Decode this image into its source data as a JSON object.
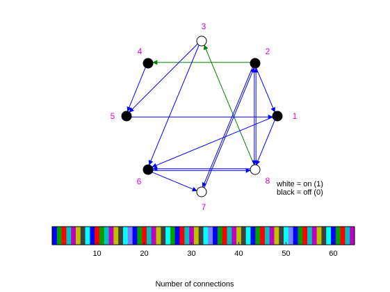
{
  "diagram": {
    "label_color": "#e000e0",
    "nodes": [
      {
        "id": "1",
        "label": "1",
        "state": "off"
      },
      {
        "id": "2",
        "label": "2",
        "state": "off"
      },
      {
        "id": "3",
        "label": "3",
        "state": "on"
      },
      {
        "id": "4",
        "label": "4",
        "state": "off"
      },
      {
        "id": "5",
        "label": "5",
        "state": "off"
      },
      {
        "id": "6",
        "label": "6",
        "state": "off"
      },
      {
        "id": "7",
        "label": "7",
        "state": "on"
      },
      {
        "id": "8",
        "label": "8",
        "state": "on"
      }
    ],
    "edges": [
      {
        "from": "2",
        "to": "4",
        "color": "#008000"
      },
      {
        "from": "8",
        "to": "3",
        "color": "#008000"
      },
      {
        "from": "3",
        "to": "5",
        "color": "#0000ff"
      },
      {
        "from": "3",
        "to": "6",
        "color": "#0000ff"
      },
      {
        "from": "4",
        "to": "5",
        "color": "#0000ff"
      },
      {
        "from": "5",
        "to": "1",
        "color": "#0000ff"
      },
      {
        "from": "2",
        "to": "1",
        "color": "#0000ff"
      },
      {
        "from": "2",
        "to": "7",
        "color": "#0000ff"
      },
      {
        "from": "7",
        "to": "2",
        "color": "#0000ff"
      },
      {
        "from": "2",
        "to": "8",
        "color": "#0000ff"
      },
      {
        "from": "8",
        "to": "2",
        "color": "#0000ff"
      },
      {
        "from": "1",
        "to": "6",
        "color": "#0000ff"
      },
      {
        "from": "1",
        "to": "8",
        "color": "#0000ff"
      },
      {
        "from": "6",
        "to": "8",
        "color": "#0000ff"
      },
      {
        "from": "8",
        "to": "6",
        "color": "#0000ff"
      },
      {
        "from": "6",
        "to": "7",
        "color": "#0000ff"
      }
    ]
  },
  "legend": {
    "line1": "white = on (1)",
    "line2": "black = off (0)"
  },
  "colorbar": {
    "ticks": [
      "10",
      "20",
      "30",
      "40",
      "50",
      "60"
    ],
    "tick_values": [
      10,
      20,
      30,
      40,
      50,
      60
    ],
    "range": [
      0.5,
      64.5
    ],
    "xlabel": "Number of connections",
    "palette": [
      "#0000ff",
      "#00a000",
      "#ff0000",
      "#00c0c0",
      "#c000c0",
      "#c0c000",
      "#404040",
      "#00ffff",
      "#8080ff",
      "#c0c0c0"
    ],
    "stripes": [
      0,
      1,
      2,
      3,
      4,
      5,
      6,
      7,
      0,
      2,
      1,
      3,
      4,
      5,
      6,
      7,
      8,
      0,
      1,
      2,
      3,
      4,
      5,
      6,
      7,
      1,
      0,
      2,
      3,
      4,
      5,
      6,
      7,
      8,
      0,
      1,
      2,
      3,
      4,
      5,
      6,
      7,
      0,
      1,
      2,
      3,
      4,
      5,
      6,
      7,
      8,
      0,
      1,
      2,
      3,
      4,
      5,
      6,
      7,
      0,
      1,
      2,
      3,
      4
    ]
  }
}
